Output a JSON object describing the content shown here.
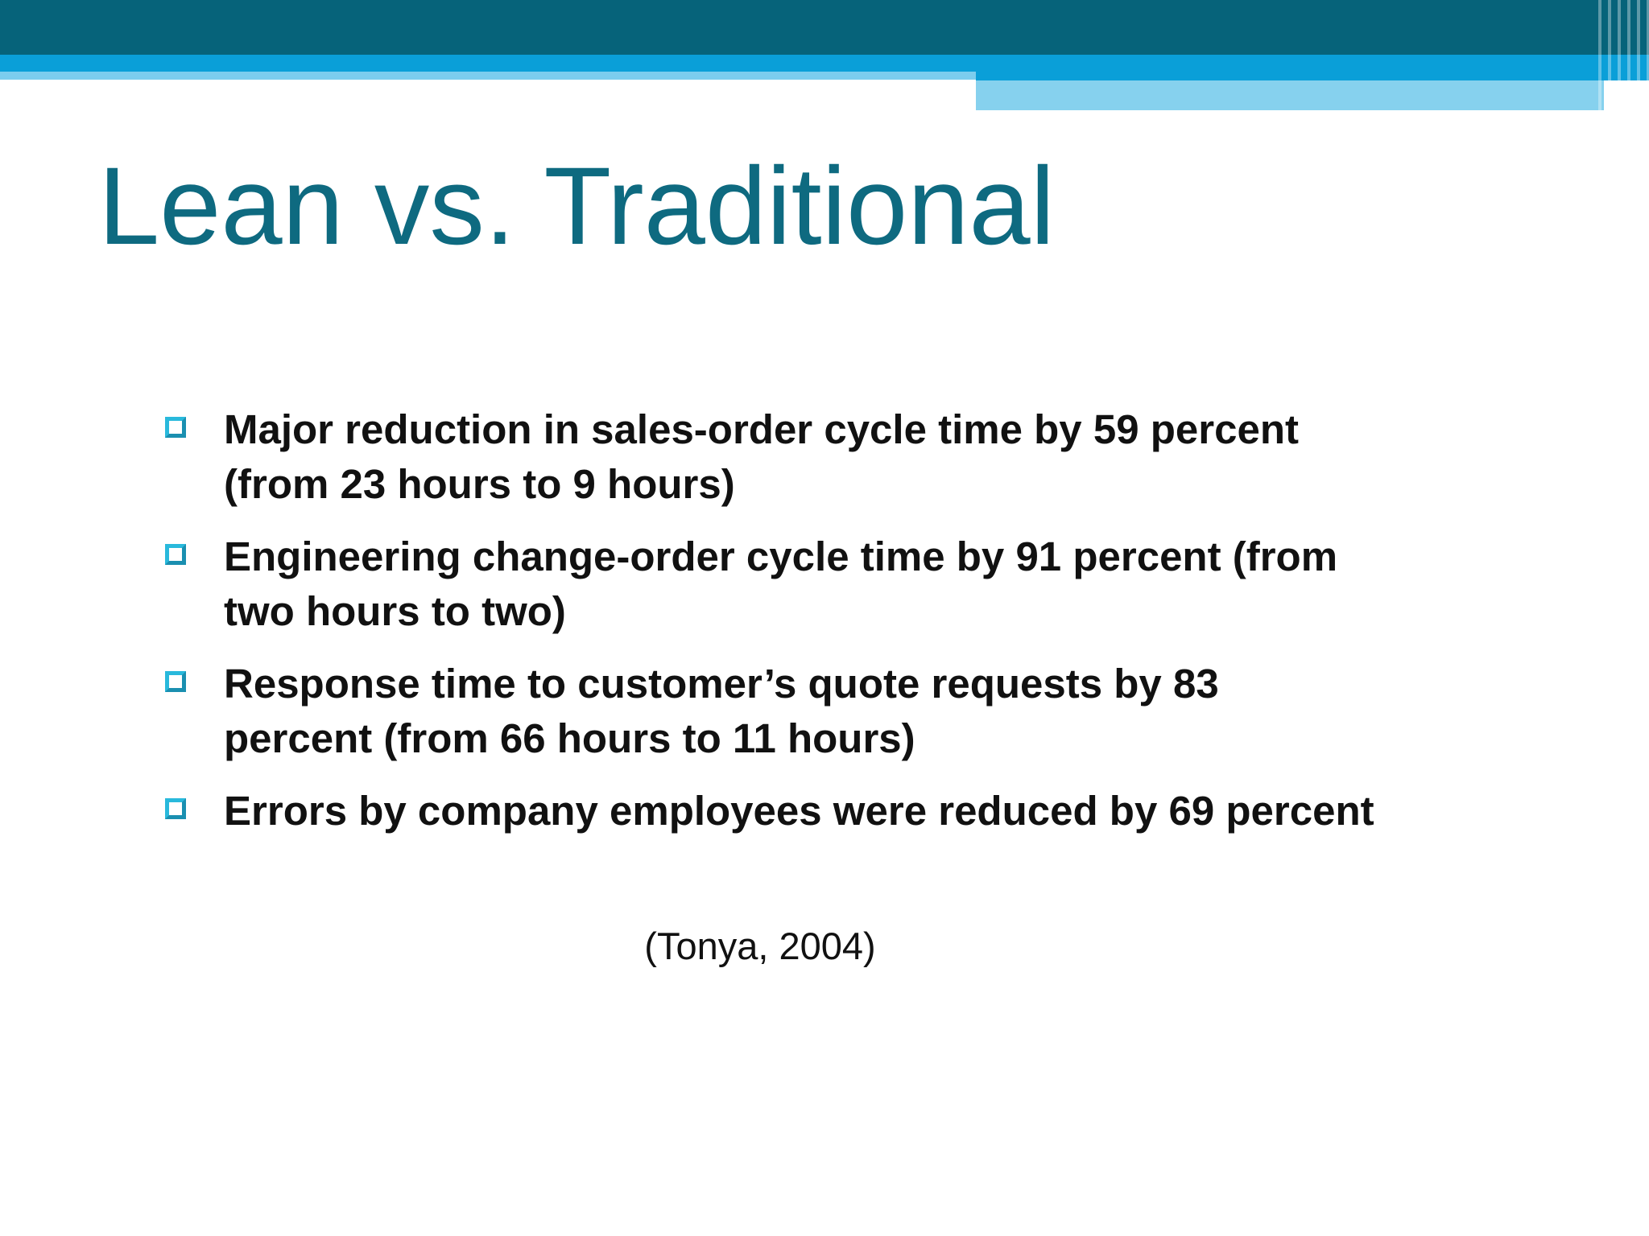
{
  "title": "Lean vs. Traditional",
  "bullets": [
    {
      "lines": [
        "Major reduction in sales-order cycle time by 59 percent",
        "(from 23 hours to 9 hours)"
      ]
    },
    {
      "lines": [
        "Engineering change-order cycle time by 91 percent (from",
        "two hours to two)"
      ]
    },
    {
      "lines": [
        "Response time to customer’s quote requests by 83",
        "percent (from 66 hours to 11 hours)"
      ]
    },
    {
      "lines": [
        "Errors by company employees were reduced by 69 percent"
      ]
    }
  ],
  "citation": "(Tonya, 2004)"
}
